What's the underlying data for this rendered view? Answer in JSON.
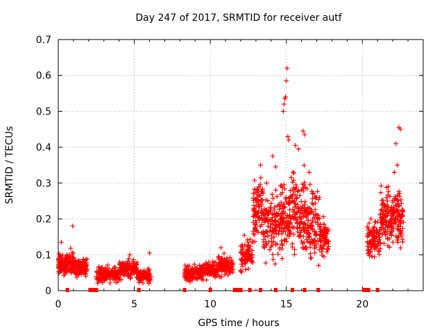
{
  "chart_data": {
    "type": "scatter",
    "title": "Day 247 of 2017, SRMTID for receiver autf",
    "xlabel": "GPS time / hours",
    "ylabel": "SRMTID / TECUs",
    "xlim": [
      0,
      24
    ],
    "ylim": [
      0,
      0.7
    ],
    "x_ticks": [
      0,
      5,
      10,
      15,
      20
    ],
    "x_tick_labels": [
      "0",
      "5",
      "10",
      "15",
      "20"
    ],
    "y_ticks": [
      0,
      0.1,
      0.2,
      0.3,
      0.4,
      0.5,
      0.6,
      0.7
    ],
    "y_tick_labels": [
      "0",
      "0.1",
      "0.2",
      "0.3",
      "0.4",
      "0.5",
      "0.6",
      "0.7"
    ],
    "grid": true,
    "marker": "+",
    "color": "#ff0000",
    "clusters": [
      {
        "x_start": 0.0,
        "x_end": 0.5,
        "y_base": 0.07,
        "y_spread": 0.04,
        "n": 70,
        "seed": 11
      },
      {
        "x_start": 0.5,
        "x_end": 1.0,
        "y_base": 0.08,
        "y_spread": 0.05,
        "n": 60,
        "seed": 12
      },
      {
        "x_start": 1.0,
        "x_end": 1.9,
        "y_base": 0.065,
        "y_spread": 0.035,
        "n": 110,
        "seed": 13
      },
      {
        "x_start": 2.5,
        "x_end": 4.0,
        "y_base": 0.045,
        "y_spread": 0.03,
        "n": 150,
        "seed": 14
      },
      {
        "x_start": 4.0,
        "x_end": 5.2,
        "y_base": 0.06,
        "y_spread": 0.035,
        "n": 130,
        "seed": 15
      },
      {
        "x_start": 5.2,
        "x_end": 6.1,
        "y_base": 0.04,
        "y_spread": 0.025,
        "n": 90,
        "seed": 16
      },
      {
        "x_start": 8.3,
        "x_end": 9.5,
        "y_base": 0.05,
        "y_spread": 0.03,
        "n": 130,
        "seed": 17
      },
      {
        "x_start": 9.5,
        "x_end": 10.5,
        "y_base": 0.055,
        "y_spread": 0.03,
        "n": 110,
        "seed": 18
      },
      {
        "x_start": 10.5,
        "x_end": 11.5,
        "y_base": 0.07,
        "y_spread": 0.04,
        "n": 100,
        "seed": 19
      },
      {
        "x_start": 12.0,
        "x_end": 12.8,
        "y_base": 0.1,
        "y_spread": 0.06,
        "n": 80,
        "seed": 20
      },
      {
        "x_start": 12.8,
        "x_end": 13.5,
        "y_base": 0.22,
        "y_spread": 0.12,
        "n": 100,
        "seed": 21
      },
      {
        "x_start": 13.5,
        "x_end": 14.5,
        "y_base": 0.18,
        "y_spread": 0.13,
        "n": 110,
        "seed": 22
      },
      {
        "x_start": 14.5,
        "x_end": 15.3,
        "y_base": 0.2,
        "y_spread": 0.15,
        "n": 100,
        "seed": 23
      },
      {
        "x_start": 15.3,
        "x_end": 16.2,
        "y_base": 0.22,
        "y_spread": 0.16,
        "n": 110,
        "seed": 24
      },
      {
        "x_start": 16.2,
        "x_end": 17.2,
        "y_base": 0.18,
        "y_spread": 0.13,
        "n": 110,
        "seed": 25
      },
      {
        "x_start": 17.2,
        "x_end": 17.8,
        "y_base": 0.15,
        "y_spread": 0.07,
        "n": 70,
        "seed": 26
      },
      {
        "x_start": 20.3,
        "x_end": 21.2,
        "y_base": 0.14,
        "y_spread": 0.08,
        "n": 100,
        "seed": 27
      },
      {
        "x_start": 21.2,
        "x_end": 22.0,
        "y_base": 0.2,
        "y_spread": 0.1,
        "n": 110,
        "seed": 28
      },
      {
        "x_start": 22.0,
        "x_end": 22.7,
        "y_base": 0.2,
        "y_spread": 0.1,
        "n": 90,
        "seed": 29
      }
    ],
    "peaks": [
      {
        "x": 0.2,
        "y": 0.135
      },
      {
        "x": 0.95,
        "y": 0.18
      },
      {
        "x": 4.7,
        "y": 0.1
      },
      {
        "x": 6.0,
        "y": 0.105
      },
      {
        "x": 10.7,
        "y": 0.12
      },
      {
        "x": 13.3,
        "y": 0.35
      },
      {
        "x": 13.7,
        "y": 0.3
      },
      {
        "x": 14.1,
        "y": 0.375
      },
      {
        "x": 14.3,
        "y": 0.345
      },
      {
        "x": 14.8,
        "y": 0.5
      },
      {
        "x": 14.85,
        "y": 0.52
      },
      {
        "x": 14.9,
        "y": 0.535
      },
      {
        "x": 14.95,
        "y": 0.54
      },
      {
        "x": 15.0,
        "y": 0.585
      },
      {
        "x": 15.05,
        "y": 0.62
      },
      {
        "x": 15.1,
        "y": 0.43
      },
      {
        "x": 15.15,
        "y": 0.42
      },
      {
        "x": 15.6,
        "y": 0.405
      },
      {
        "x": 15.8,
        "y": 0.395
      },
      {
        "x": 16.1,
        "y": 0.445
      },
      {
        "x": 16.2,
        "y": 0.435
      },
      {
        "x": 16.5,
        "y": 0.33
      },
      {
        "x": 17.0,
        "y": 0.26
      },
      {
        "x": 22.4,
        "y": 0.455
      },
      {
        "x": 22.5,
        "y": 0.45
      },
      {
        "x": 22.2,
        "y": 0.41
      },
      {
        "x": 22.3,
        "y": 0.35
      },
      {
        "x": 21.7,
        "y": 0.29
      },
      {
        "x": 22.1,
        "y": 0.33
      }
    ],
    "baseline_markers": [
      0.6,
      2.1,
      2.2,
      2.3,
      2.4,
      2.5,
      5.3,
      8.3,
      10.0,
      11.6,
      11.7,
      11.8,
      11.9,
      12.0,
      12.6,
      13.3,
      14.3,
      15.4,
      16.2,
      17.1,
      20.1,
      20.2,
      20.3,
      20.4,
      21.0
    ]
  }
}
